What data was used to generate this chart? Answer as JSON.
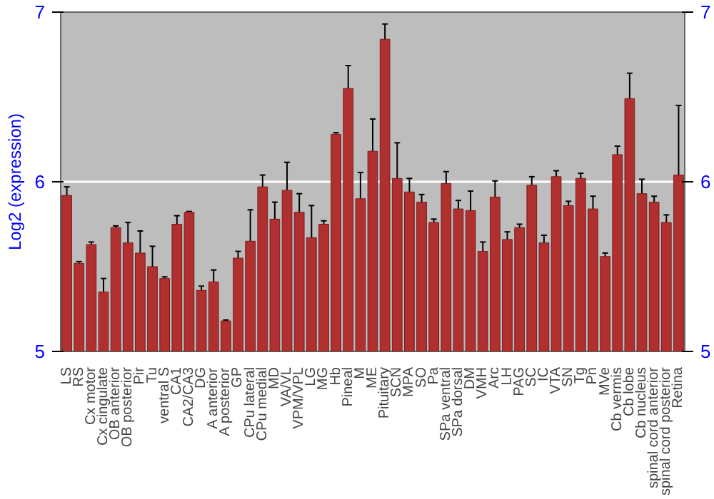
{
  "chart_data": {
    "type": "bar",
    "ylabel": "Log2 (expression)",
    "categories": [
      "LS",
      "RS",
      "Cx motor",
      "Cx cingulate",
      "OB anterior",
      "OB posterior",
      "Pir",
      "Tu",
      "ventral S",
      "CA1",
      "CA2/CA3",
      "DG",
      "A anterior",
      "A posterior",
      "GP",
      "CPu lateral",
      "CPu medial",
      "MD",
      "VA/VL",
      "VPM/VPL",
      "LG",
      "MG",
      "Hb",
      "Pineal",
      "M",
      "ME",
      "Pituitary",
      "SCN",
      "MPA",
      "SO",
      "Pa",
      "SPa ventral",
      "SPa dorsal",
      "DM",
      "VMH",
      "Arc",
      "LH",
      "PAG",
      "SC",
      "IC",
      "VTA",
      "SN",
      "Tg",
      "Pn",
      "MVe",
      "Cb vermis",
      "Cb lobe",
      "Cb nucleus",
      "spinal cord anterior",
      "spinal cord posterior",
      "Retina"
    ],
    "values": [
      5.92,
      5.52,
      5.63,
      5.35,
      5.73,
      5.64,
      5.58,
      5.5,
      5.43,
      5.75,
      5.82,
      5.36,
      5.41,
      5.18,
      5.55,
      5.65,
      5.97,
      5.78,
      5.95,
      5.82,
      5.67,
      5.75,
      6.28,
      6.55,
      5.9,
      6.18,
      6.84,
      6.02,
      5.94,
      5.88,
      5.76,
      5.99,
      5.84,
      5.83,
      5.59,
      5.91,
      5.66,
      5.73,
      5.98,
      5.64,
      6.03,
      5.86,
      6.02,
      5.84,
      5.56,
      6.16,
      6.49,
      5.93,
      5.88,
      5.76,
      6.04
    ],
    "errors": [
      0.05,
      0.01,
      0.015,
      0.08,
      0.01,
      0.12,
      0.13,
      0.12,
      0.01,
      0.05,
      0.005,
      0.025,
      0.07,
      0.005,
      0.04,
      0.185,
      0.07,
      0.1,
      0.165,
      0.11,
      0.19,
      0.02,
      0.01,
      0.135,
      0.155,
      0.19,
      0.09,
      0.21,
      0.08,
      0.045,
      0.02,
      0.07,
      0.05,
      0.115,
      0.055,
      0.095,
      0.045,
      0.02,
      0.05,
      0.045,
      0.035,
      0.025,
      0.03,
      0.075,
      0.02,
      0.05,
      0.15,
      0.085,
      0.035,
      0.045,
      0.41
    ],
    "color": "#b03030",
    "ylim": [
      5,
      7
    ],
    "yticks": [
      5,
      6,
      7
    ],
    "y2lim": [
      5,
      7
    ],
    "y2ticks": [
      5,
      6,
      7
    ],
    "grid": "y"
  }
}
